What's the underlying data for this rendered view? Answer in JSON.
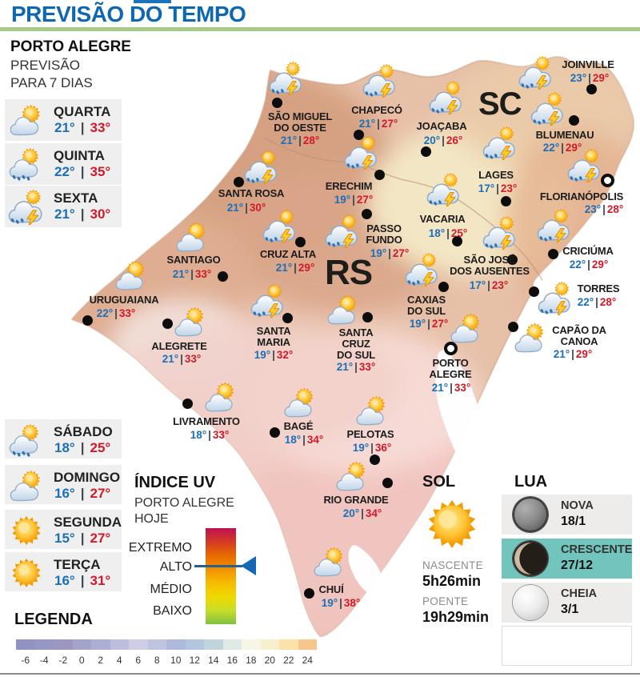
{
  "header": {
    "title": "PREVISÃO DO TEMPO"
  },
  "colors": {
    "title_blue": "#0d67b3",
    "green_rule": "#a6cc85",
    "temp_min_blue": "#1c6fb8",
    "temp_max_red": "#d11a2a",
    "moon_highlight_teal": "#72c5bc",
    "row_gray": "#efefef"
  },
  "sidebar": {
    "city": "PORTO ALEGRE",
    "subtitle_line1": "PREVISÃO",
    "subtitle_line2": "PARA 7 DIAS",
    "days_top": [
      {
        "name": "QUARTA",
        "min": "21°",
        "max": "33°",
        "icon": "partly"
      },
      {
        "name": "QUINTA",
        "min": "22°",
        "max": "35°",
        "icon": "rain"
      },
      {
        "name": "SEXTA",
        "min": "21°",
        "max": "30°",
        "icon": "storm"
      }
    ],
    "days_bottom": [
      {
        "name": "SÁBADO",
        "min": "18°",
        "max": "25°",
        "icon": "rain"
      },
      {
        "name": "DOMINGO",
        "min": "16°",
        "max": "27°",
        "icon": "partly"
      },
      {
        "name": "SEGUNDA",
        "min": "15°",
        "max": "27°",
        "icon": "sunny"
      },
      {
        "name": "TERÇA",
        "min": "16°",
        "max": "31°",
        "icon": "sunny"
      }
    ]
  },
  "map": {
    "rs_label": "RS",
    "sc_label": "SC",
    "cities": [
      {
        "lines": [
          "SÃO MIGUEL",
          "DO OESTE"
        ],
        "min": "21°",
        "max": "28°",
        "icon": "storm",
        "dot": [
          346,
          128
        ],
        "ring": false,
        "iconPos": [
          358,
          97
        ],
        "label": [
          375,
          139
        ],
        "temps": [
          375,
          168
        ]
      },
      {
        "lines": [
          "CHAPECÓ"
        ],
        "min": "21°",
        "max": "27°",
        "icon": "storm",
        "dot": [
          448,
          168
        ],
        "ring": false,
        "iconPos": [
          475,
          100
        ],
        "label": [
          471,
          131
        ],
        "temps": [
          473,
          147
        ]
      },
      {
        "lines": [
          "JOAÇABA"
        ],
        "min": "20°",
        "max": "26°",
        "icon": "storm",
        "dot": [
          532,
          189
        ],
        "ring": false,
        "iconPos": [
          558,
          121
        ],
        "label": [
          552,
          151
        ],
        "temps": [
          554,
          168
        ]
      },
      {
        "lines": [
          "JOINVILLE"
        ],
        "min": "23°",
        "max": "29°",
        "icon": "storm",
        "dot": [
          739,
          111
        ],
        "ring": false,
        "iconPos": [
          670,
          90
        ],
        "label": [
          735,
          74
        ],
        "temps": [
          737,
          90
        ]
      },
      {
        "lines": [
          "BLUMENAU"
        ],
        "min": "22°",
        "max": "29°",
        "icon": "storm",
        "dot": [
          717,
          150
        ],
        "ring": false,
        "iconPos": [
          685,
          135
        ],
        "label": [
          706,
          162
        ],
        "temps": [
          703,
          177
        ]
      },
      {
        "lines": [
          "LAGES"
        ],
        "min": "17°",
        "max": "23°",
        "icon": "storm",
        "dot": [
          632,
          251
        ],
        "ring": false,
        "iconPos": [
          625,
          178
        ],
        "label": [
          620,
          212
        ],
        "temps": [
          622,
          228
        ]
      },
      {
        "lines": [
          "FLORIANÓPOLIS"
        ],
        "min": "23°",
        "max": "28°",
        "icon": "storm",
        "dot": [
          759,
          225
        ],
        "ring": true,
        "iconPos": [
          731,
          206
        ],
        "label": [
          727,
          239
        ],
        "temps": [
          755,
          254
        ]
      },
      {
        "lines": [
          "ERECHIM"
        ],
        "min": "19°",
        "max": "27°",
        "icon": "storm",
        "dot": [
          474,
          218
        ],
        "ring": false,
        "iconPos": [
          452,
          190
        ],
        "label": [
          436,
          226
        ],
        "temps": [
          442,
          242
        ]
      },
      {
        "lines": [
          "SANTA ROSA"
        ],
        "min": "21°",
        "max": "30°",
        "icon": "storm",
        "dot": [
          298,
          227
        ],
        "ring": false,
        "iconPos": [
          327,
          208
        ],
        "label": [
          314,
          235
        ],
        "temps": [
          308,
          252
        ]
      },
      {
        "lines": [
          "PASSO",
          "FUNDO"
        ],
        "min": "19°",
        "max": "27°",
        "icon": "storm",
        "dot": [
          458,
          267
        ],
        "ring": false,
        "iconPos": [
          428,
          288
        ],
        "label": [
          480,
          279
        ],
        "temps": [
          487,
          309
        ]
      },
      {
        "lines": [
          "VACARIA"
        ],
        "min": "18°",
        "max": "25°",
        "icon": "storm",
        "dot": [
          571,
          301
        ],
        "ring": false,
        "iconPos": [
          555,
          236
        ],
        "label": [
          553,
          267
        ],
        "temps": [
          560,
          284
        ]
      },
      {
        "lines": [
          "CRUZ ALTA"
        ],
        "min": "21°",
        "max": "29°",
        "icon": "storm",
        "dot": [
          375,
          302
        ],
        "ring": false,
        "iconPos": [
          350,
          282
        ],
        "label": [
          360,
          311
        ],
        "temps": [
          369,
          327
        ]
      },
      {
        "lines": [
          "SANTIAGO"
        ],
        "min": "21°",
        "max": "33°",
        "icon": "partly",
        "dot": [
          278,
          345
        ],
        "ring": false,
        "iconPos": [
          240,
          296
        ],
        "label": [
          242,
          318
        ],
        "temps": [
          240,
          335
        ]
      },
      {
        "lines": [
          "URUGUAIANA"
        ],
        "min": "22°",
        "max": "33°",
        "icon": "partly",
        "dot": [
          109,
          400
        ],
        "ring": false,
        "iconPos": [
          164,
          344
        ],
        "label": [
          155,
          368
        ],
        "temps": [
          145,
          384
        ]
      },
      {
        "lines": [
          "ALEGRETE"
        ],
        "min": "21°",
        "max": "33°",
        "icon": "partly",
        "dot": [
          209,
          404
        ],
        "ring": false,
        "iconPos": [
          238,
          402
        ],
        "label": [
          224,
          426
        ],
        "temps": [
          227,
          441
        ]
      },
      {
        "lines": [
          "SANTA",
          "MARIA"
        ],
        "min": "19°",
        "max": "32°",
        "icon": "storm",
        "dot": [
          359,
          397
        ],
        "ring": false,
        "iconPos": [
          335,
          375
        ],
        "label": [
          342,
          407
        ],
        "temps": [
          342,
          436
        ]
      },
      {
        "lines": [
          "SANTA",
          "CRUZ",
          "DO SUL"
        ],
        "min": "21°",
        "max": "33°",
        "icon": "partly",
        "dot": [
          459,
          396
        ],
        "ring": false,
        "iconPos": [
          429,
          387
        ],
        "label": [
          445,
          409
        ],
        "temps": [
          445,
          451
        ]
      },
      {
        "lines": [
          "CAXIAS",
          "DO SUL"
        ],
        "min": "19°",
        "max": "27°",
        "icon": "storm",
        "dot": [
          554,
          358
        ],
        "ring": false,
        "iconPos": [
          528,
          336
        ],
        "label": [
          533,
          368
        ],
        "temps": [
          536,
          397
        ]
      },
      {
        "lines": [
          "SÃO JOSÉ",
          "DOS AUSENTES"
        ],
        "min": "17°",
        "max": "23°",
        "icon": "storm",
        "dot": [
          640,
          324
        ],
        "ring": false,
        "iconPos": [
          625,
          290
        ],
        "label": [
          612,
          318
        ],
        "temps": [
          611,
          349
        ]
      },
      {
        "lines": [
          "CRICIÚMA"
        ],
        "min": "22°",
        "max": "29°",
        "icon": "storm",
        "dot": [
          691,
          317
        ],
        "ring": false,
        "iconPos": [
          693,
          281
        ],
        "label": [
          735,
          307
        ],
        "temps": [
          736,
          323
        ]
      },
      {
        "lines": [
          "TORRES"
        ],
        "min": "22°",
        "max": "28°",
        "icon": "storm",
        "dot": [
          667,
          364
        ],
        "ring": false,
        "iconPos": [
          694,
          372
        ],
        "label": [
          748,
          354
        ],
        "temps": [
          746,
          370
        ]
      },
      {
        "lines": [
          "CAPÃO DA",
          "CANOA"
        ],
        "min": "21°",
        "max": "29°",
        "icon": "partly",
        "dot": [
          641,
          408
        ],
        "ring": false,
        "iconPos": [
          663,
          422
        ],
        "label": [
          724,
          406
        ],
        "temps": [
          716,
          435
        ]
      },
      {
        "lines": [
          "PORTO",
          "ALEGRE"
        ],
        "min": "21°",
        "max": "33°",
        "icon": "partly",
        "dot": [
          563,
          435
        ],
        "ring": true,
        "iconPos": [
          583,
          410
        ],
        "label": [
          563,
          447
        ],
        "temps": [
          564,
          477
        ]
      },
      {
        "lines": [
          "LIVRAMENTO"
        ],
        "min": "18°",
        "max": "33°",
        "icon": "partly",
        "dot": [
          234,
          504
        ],
        "ring": false,
        "iconPos": [
          276,
          496
        ],
        "label": [
          258,
          520
        ],
        "temps": [
          262,
          536
        ]
      },
      {
        "lines": [
          "BAGÉ"
        ],
        "min": "18°",
        "max": "34°",
        "icon": "partly",
        "dot": [
          343,
          540
        ],
        "ring": false,
        "iconPos": [
          375,
          503
        ],
        "label": [
          373,
          526
        ],
        "temps": [
          380,
          542
        ]
      },
      {
        "lines": [
          "PELOTAS"
        ],
        "min": "19°",
        "max": "36°",
        "icon": "partly",
        "dot": [
          468,
          574
        ],
        "ring": false,
        "iconPos": [
          465,
          513
        ],
        "label": [
          463,
          536
        ],
        "temps": [
          465,
          552
        ]
      },
      {
        "lines": [
          "RIO GRANDE"
        ],
        "min": "20°",
        "max": "34°",
        "icon": "partly",
        "dot": [
          484,
          603
        ],
        "ring": false,
        "iconPos": [
          440,
          595
        ],
        "label": [
          445,
          618
        ],
        "temps": [
          453,
          634
        ]
      },
      {
        "lines": [
          "CHUÍ"
        ],
        "min": "19°",
        "max": "38°",
        "icon": "partly",
        "dot": [
          386,
          741
        ],
        "ring": false,
        "iconPos": [
          412,
          702
        ],
        "label": [
          414,
          730
        ],
        "temps": [
          426,
          746
        ]
      }
    ]
  },
  "uv": {
    "title": "ÍNDICE UV",
    "subtitle_line1": "PORTO ALEGRE",
    "subtitle_line2": "HOJE",
    "levels": [
      "EXTREMO",
      "ALTO",
      "MÉDIO",
      "BAIXO"
    ],
    "current": "ALTO",
    "gradient": [
      "#BE1152",
      "#D33A23",
      "#E86A00",
      "#F29100",
      "#F6BC00",
      "#EFD900",
      "#C8DC2A",
      "#7FC242"
    ]
  },
  "sun": {
    "title": "SOL",
    "rise_label": "NASCENTE",
    "rise_value": "5h26min",
    "set_label": "POENTE",
    "set_value": "19h29min"
  },
  "moon": {
    "title": "LUA",
    "phases": [
      {
        "name": "NOVA",
        "date": "18/1",
        "type": "new",
        "highlight": false
      },
      {
        "name": "CRESCENTE",
        "date": "27/12",
        "type": "crescent",
        "highlight": true
      },
      {
        "name": "CHEIA",
        "date": "3/1",
        "type": "full",
        "highlight": false
      }
    ]
  },
  "legend": {
    "title": "LEGENDA",
    "ticks": [
      "-6",
      "-4",
      "-2",
      "0",
      "2",
      "4",
      "6",
      "8",
      "10",
      "12",
      "14",
      "16",
      "18",
      "20",
      "22",
      "24"
    ],
    "colors": [
      "#9093C0",
      "#9597C4",
      "#9B97C1",
      "#A3A3CB",
      "#AEAED4",
      "#BDBDDE",
      "#CDCDE4",
      "#BFC4E0",
      "#AFB9DB",
      "#B3C6DF",
      "#BFD5DB",
      "#DDEAE6",
      "#F7F5E3",
      "#F8F0CC",
      "#FAE2A8",
      "#F6C68C"
    ]
  }
}
